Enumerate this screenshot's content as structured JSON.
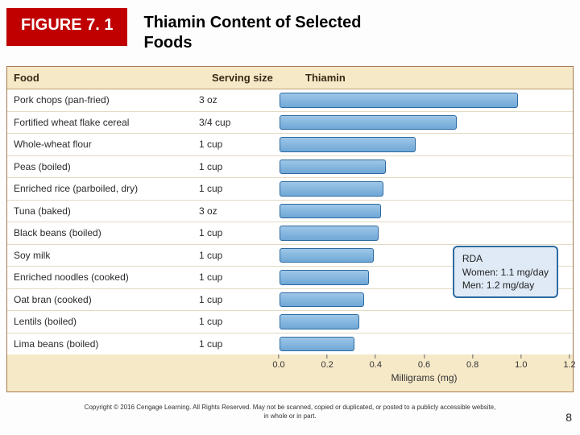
{
  "header": {
    "figure_label": "FIGURE 7. 1",
    "title_line1": "Thiamin Content of Selected",
    "title_line2": "Foods"
  },
  "columns": {
    "food": "Food",
    "serving": "Serving size",
    "metric": "Thiamin"
  },
  "chart": {
    "type": "bar",
    "x_axis_label": "Milligrams (mg)",
    "xlim": [
      0.0,
      1.2
    ],
    "xtick_step": 0.2,
    "xticks": [
      "0.0",
      "0.2",
      "0.4",
      "0.6",
      "0.8",
      "1.0",
      "1.2"
    ],
    "bar_fill": "#6fa7d6",
    "bar_border": "#2d6aa0",
    "panel_bg": "#f6e9c8",
    "row_bg": "#ffffff",
    "border_color": "#a67b4f",
    "items": [
      {
        "food": "Pork chops (pan-fried)",
        "serving": "3 oz",
        "value": 0.97
      },
      {
        "food": "Fortified wheat flake cereal",
        "serving": "3/4 cup",
        "value": 0.72
      },
      {
        "food": "Whole-wheat flour",
        "serving": "1 cup",
        "value": 0.55
      },
      {
        "food": "Peas (boiled)",
        "serving": "1 cup",
        "value": 0.43
      },
      {
        "food": "Enriched rice (parboiled, dry)",
        "serving": "1 cup",
        "value": 0.42
      },
      {
        "food": "Tuna (baked)",
        "serving": "3 oz",
        "value": 0.41
      },
      {
        "food": "Black beans (boiled)",
        "serving": "1 cup",
        "value": 0.4
      },
      {
        "food": "Soy milk",
        "serving": "1 cup",
        "value": 0.38
      },
      {
        "food": "Enriched noodles (cooked)",
        "serving": "1 cup",
        "value": 0.36
      },
      {
        "food": "Oat bran (cooked)",
        "serving": "1 cup",
        "value": 0.34
      },
      {
        "food": "Lentils (boiled)",
        "serving": "1 cup",
        "value": 0.32
      },
      {
        "food": "Lima beans (boiled)",
        "serving": "1 cup",
        "value": 0.3
      }
    ]
  },
  "rda": {
    "title": "RDA",
    "women": "Women: 1.1 mg/day",
    "men": "Men: 1.2 mg/day"
  },
  "footer": {
    "copyright_line1": "Copyright © 2016 Cengage Learning. All Rights Reserved. May not be scanned, copied or duplicated, or posted to a publicly accessible website,",
    "copyright_line2": "in whole or in part.",
    "page_number": "8"
  }
}
